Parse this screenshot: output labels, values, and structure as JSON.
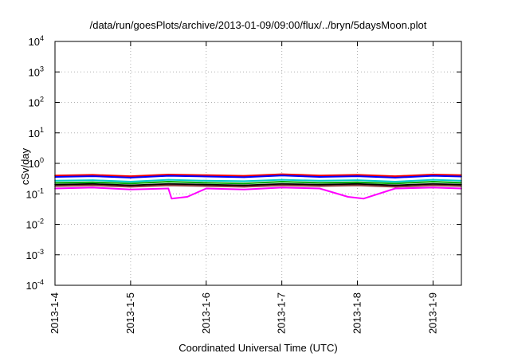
{
  "chart_data": {
    "type": "line",
    "title": "/data/run/goesPlots/archive/2013-01-09/09:00/flux/../bryn/5daysMoon.plot",
    "xlabel": "Coordinated Universal Time (UTC)",
    "ylabel": "cSv/day",
    "yscale": "log",
    "ylim": [
      0.0001,
      10000
    ],
    "xlim": [
      "2013-01-04 00:00",
      "2013-01-09 09:00"
    ],
    "grid": true,
    "legend": "none",
    "x_ticks": [
      {
        "value": "2013-01-04",
        "label": "2013-1-4"
      },
      {
        "value": "2013-01-05",
        "label": "2013-1-5"
      },
      {
        "value": "2013-01-06",
        "label": "2013-1-6"
      },
      {
        "value": "2013-01-07",
        "label": "2013-1-7"
      },
      {
        "value": "2013-01-08",
        "label": "2013-1-8"
      },
      {
        "value": "2013-01-09",
        "label": "2013-1-9"
      }
    ],
    "y_ticks": [
      {
        "value": 0.0001,
        "base": "10",
        "exp": "-4"
      },
      {
        "value": 0.001,
        "base": "10",
        "exp": "-3"
      },
      {
        "value": 0.01,
        "base": "10",
        "exp": "-2"
      },
      {
        "value": 0.1,
        "base": "10",
        "exp": "-1"
      },
      {
        "value": 1,
        "base": "10",
        "exp": "0"
      },
      {
        "value": 10,
        "base": "10",
        "exp": "1"
      },
      {
        "value": 100,
        "base": "10",
        "exp": "2"
      },
      {
        "value": 1000,
        "base": "10",
        "exp": "3"
      },
      {
        "value": 10000,
        "base": "10",
        "exp": "4"
      }
    ],
    "series": [
      {
        "color": "#ff0000",
        "x": [
          "2013-01-04 00:00",
          "2013-01-04 12:00",
          "2013-01-05 00:00",
          "2013-01-05 12:00",
          "2013-01-06 00:00",
          "2013-01-06 12:00",
          "2013-01-07 00:00",
          "2013-01-07 12:00",
          "2013-01-08 00:00",
          "2013-01-08 12:00",
          "2013-01-09 00:00",
          "2013-01-09 09:00"
        ],
        "values": [
          0.4,
          0.42,
          0.38,
          0.43,
          0.41,
          0.39,
          0.44,
          0.4,
          0.42,
          0.38,
          0.43,
          0.41
        ]
      },
      {
        "color": "#0000ff",
        "x": [
          "2013-01-04 00:00",
          "2013-01-04 12:00",
          "2013-01-05 00:00",
          "2013-01-05 12:00",
          "2013-01-06 00:00",
          "2013-01-06 12:00",
          "2013-01-07 00:00",
          "2013-01-07 12:00",
          "2013-01-08 00:00",
          "2013-01-08 12:00",
          "2013-01-09 00:00",
          "2013-01-09 09:00"
        ],
        "values": [
          0.36,
          0.38,
          0.34,
          0.39,
          0.37,
          0.35,
          0.4,
          0.36,
          0.38,
          0.34,
          0.39,
          0.37
        ]
      },
      {
        "color": "#00cccc",
        "x": [
          "2013-01-04 00:00",
          "2013-01-04 12:00",
          "2013-01-05 00:00",
          "2013-01-05 12:00",
          "2013-01-06 00:00",
          "2013-01-06 12:00",
          "2013-01-07 00:00",
          "2013-01-07 12:00",
          "2013-01-08 00:00",
          "2013-01-08 12:00",
          "2013-01-09 00:00",
          "2013-01-09 09:00"
        ],
        "values": [
          0.27,
          0.28,
          0.25,
          0.29,
          0.27,
          0.26,
          0.29,
          0.27,
          0.28,
          0.25,
          0.29,
          0.27
        ]
      },
      {
        "color": "#00aa00",
        "x": [
          "2013-01-04 00:00",
          "2013-01-04 12:00",
          "2013-01-05 00:00",
          "2013-01-05 12:00",
          "2013-01-06 00:00",
          "2013-01-06 12:00",
          "2013-01-07 00:00",
          "2013-01-07 12:00",
          "2013-01-08 00:00",
          "2013-01-08 12:00",
          "2013-01-09 00:00",
          "2013-01-09 09:00"
        ],
        "values": [
          0.23,
          0.24,
          0.22,
          0.25,
          0.23,
          0.22,
          0.25,
          0.23,
          0.24,
          0.22,
          0.25,
          0.23
        ]
      },
      {
        "color": "#000000",
        "x": [
          "2013-01-04 00:00",
          "2013-01-04 12:00",
          "2013-01-05 00:00",
          "2013-01-05 12:00",
          "2013-01-06 00:00",
          "2013-01-06 12:00",
          "2013-01-07 00:00",
          "2013-01-07 12:00",
          "2013-01-08 00:00",
          "2013-01-08 12:00",
          "2013-01-09 00:00",
          "2013-01-09 09:00"
        ],
        "values": [
          0.2,
          0.21,
          0.19,
          0.21,
          0.2,
          0.19,
          0.21,
          0.2,
          0.21,
          0.19,
          0.21,
          0.2
        ]
      },
      {
        "color": "#8b3a3a",
        "x": [
          "2013-01-04 00:00",
          "2013-01-04 12:00",
          "2013-01-05 00:00",
          "2013-01-05 12:00",
          "2013-01-06 00:00",
          "2013-01-06 12:00",
          "2013-01-07 00:00",
          "2013-01-07 12:00",
          "2013-01-08 00:00",
          "2013-01-08 12:00",
          "2013-01-09 00:00",
          "2013-01-09 09:00"
        ],
        "values": [
          0.18,
          0.19,
          0.17,
          0.19,
          0.18,
          0.17,
          0.19,
          0.18,
          0.19,
          0.17,
          0.19,
          0.18
        ]
      },
      {
        "color": "#ff00ff",
        "x": [
          "2013-01-04 00:00",
          "2013-01-04 12:00",
          "2013-01-05 00:00",
          "2013-01-05 12:00",
          "2013-01-05 13:00",
          "2013-01-05 18:00",
          "2013-01-06 00:00",
          "2013-01-06 12:00",
          "2013-01-07 00:00",
          "2013-01-07 12:00",
          "2013-01-07 21:00",
          "2013-01-08 02:00",
          "2013-01-08 12:00",
          "2013-01-09 00:00",
          "2013-01-09 09:00"
        ],
        "values": [
          0.15,
          0.16,
          0.14,
          0.15,
          0.07,
          0.08,
          0.15,
          0.14,
          0.16,
          0.15,
          0.08,
          0.07,
          0.15,
          0.16,
          0.15
        ]
      }
    ]
  }
}
